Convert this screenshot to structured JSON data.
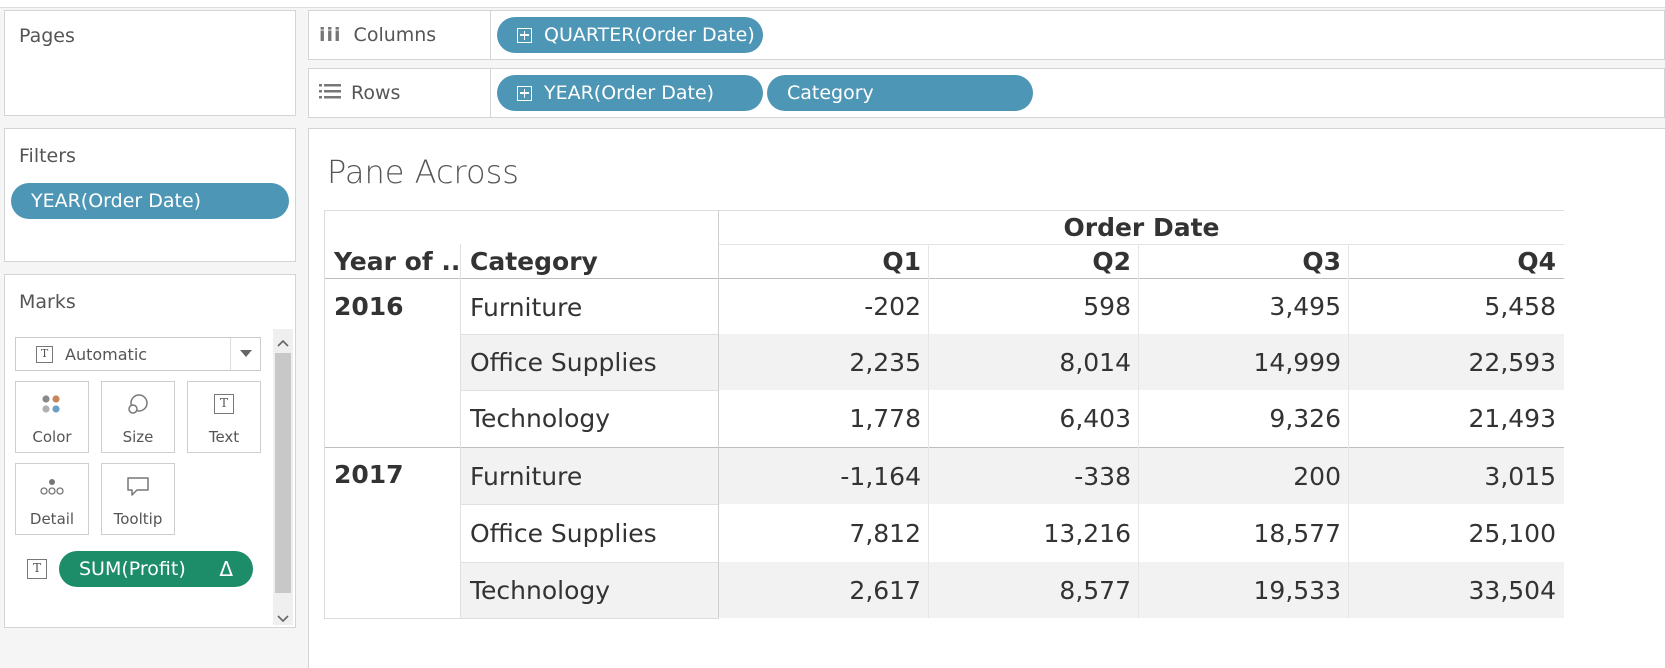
{
  "pages": {
    "title": "Pages"
  },
  "filters": {
    "title": "Filters",
    "pills": [
      "YEAR(Order Date)"
    ]
  },
  "marks": {
    "title": "Marks",
    "mark_type": "Automatic",
    "cards": [
      {
        "label": "Color",
        "icon": "color-icon"
      },
      {
        "label": "Size",
        "icon": "size-icon"
      },
      {
        "label": "Text",
        "icon": "text-icon"
      },
      {
        "label": "Detail",
        "icon": "detail-icon"
      },
      {
        "label": "Tooltip",
        "icon": "tooltip-icon"
      }
    ],
    "field_pill": "SUM(Profit)",
    "delta_symbol": "Δ"
  },
  "columns_shelf": {
    "label": "Columns",
    "pills": [
      "QUARTER(Order Date)"
    ]
  },
  "rows_shelf": {
    "label": "Rows",
    "pills": [
      "YEAR(Order Date)",
      "Category"
    ]
  },
  "view": {
    "title": "Pane Across",
    "table": {
      "top_header": "Order Date",
      "row_headers": [
        "Year of ..",
        "Category"
      ],
      "columns": [
        "Q1",
        "Q2",
        "Q3",
        "Q4"
      ],
      "groups": [
        {
          "year": "2016",
          "rows": [
            {
              "category": "Furniture",
              "values": [
                "-202",
                "598",
                "3,495",
                "5,458"
              ]
            },
            {
              "category": "Office Supplies",
              "values": [
                "2,235",
                "8,014",
                "14,999",
                "22,593"
              ]
            },
            {
              "category": "Technology",
              "values": [
                "1,778",
                "6,403",
                "9,326",
                "21,493"
              ]
            }
          ]
        },
        {
          "year": "2017",
          "rows": [
            {
              "category": "Furniture",
              "values": [
                "-1,164",
                "-338",
                "200",
                "3,015"
              ]
            },
            {
              "category": "Office Supplies",
              "values": [
                "7,812",
                "13,216",
                "18,577",
                "25,100"
              ]
            },
            {
              "category": "Technology",
              "values": [
                "2,617",
                "8,577",
                "19,533",
                "33,504"
              ]
            }
          ]
        }
      ]
    }
  },
  "colors": {
    "pill_blue": "#4e96b5",
    "pill_green": "#1d8c68",
    "band_gray": "#f2f2f2"
  }
}
